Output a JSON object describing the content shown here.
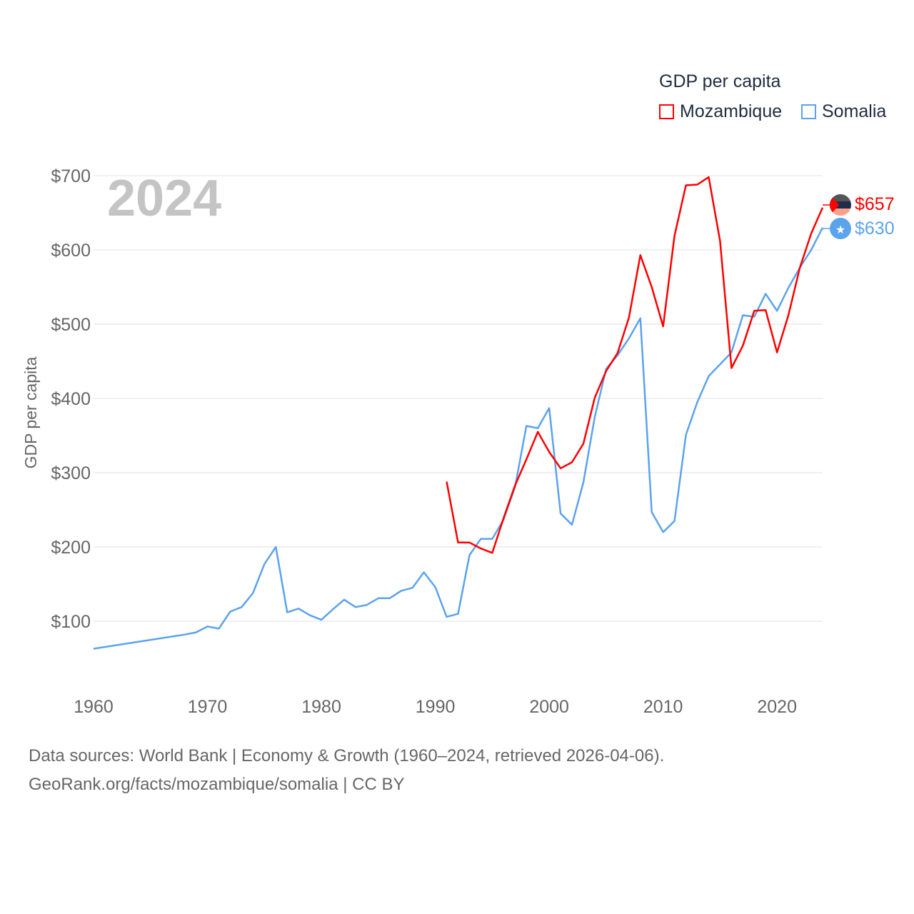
{
  "legend": {
    "title": "GDP per capita",
    "items": [
      {
        "label": "Mozambique",
        "color": "#ff0000"
      },
      {
        "label": "Somalia",
        "color": "#5ba3ec"
      }
    ]
  },
  "year_display": "2024",
  "end_labels": {
    "mozambique": "$657",
    "somalia": "$630"
  },
  "footer": {
    "line1": "Data sources: World Bank | Economy & Growth (1960–2024, retrieved 2026-04-06).",
    "line2": "GeoRank.org/facts/mozambique/somalia | CC BY"
  },
  "chart_data": {
    "type": "line",
    "title": "GDP per capita",
    "xlabel": "",
    "ylabel": "GDP per capita",
    "xlim": [
      1960,
      2024
    ],
    "ylim": [
      40,
      720
    ],
    "x_ticks": [
      1960,
      1970,
      1980,
      1990,
      2000,
      2010,
      2020
    ],
    "x_tick_labels": [
      "1960",
      "1970",
      "1980",
      "1990",
      "2000",
      "2010",
      "2020"
    ],
    "y_ticks": [
      100,
      200,
      300,
      400,
      500,
      600,
      700
    ],
    "y_tick_labels": [
      "$100",
      "$200",
      "$300",
      "$400",
      "$500",
      "$600",
      "$700"
    ],
    "grid": true,
    "legend_position": "top-right",
    "series": [
      {
        "name": "Mozambique",
        "color": "#ff0000",
        "x": [
          1991,
          1992,
          1993,
          1994,
          1995,
          1996,
          1997,
          1998,
          1999,
          2000,
          2001,
          2002,
          2003,
          2004,
          2005,
          2006,
          2007,
          2008,
          2009,
          2010,
          2011,
          2012,
          2013,
          2014,
          2015,
          2016,
          2017,
          2018,
          2019,
          2020,
          2021,
          2022,
          2023,
          2024
        ],
        "values": [
          288,
          206,
          206,
          198,
          192,
          239,
          283,
          318,
          355,
          328,
          306,
          314,
          339,
          401,
          437,
          461,
          509,
          593,
          550,
          497,
          619,
          687,
          688,
          698,
          612,
          441,
          471,
          518,
          519,
          462,
          512,
          576,
          622,
          657
        ]
      },
      {
        "name": "Somalia",
        "color": "#5ba3ec",
        "x": [
          1960,
          1968,
          1969,
          1970,
          1971,
          1972,
          1973,
          1974,
          1975,
          1976,
          1977,
          1978,
          1979,
          1980,
          1981,
          1982,
          1983,
          1984,
          1985,
          1986,
          1987,
          1988,
          1989,
          1990,
          1991,
          1992,
          1993,
          1994,
          1995,
          1996,
          1997,
          1998,
          1999,
          2000,
          2001,
          2002,
          2003,
          2004,
          2005,
          2006,
          2007,
          2008,
          2009,
          2010,
          2011,
          2012,
          2013,
          2014,
          2015,
          2016,
          2017,
          2018,
          2019,
          2020,
          2021,
          2022,
          2023,
          2024
        ],
        "values": [
          63,
          82,
          85,
          93,
          90,
          113,
          119,
          138,
          177,
          200,
          112,
          117,
          108,
          102,
          116,
          129,
          119,
          122,
          131,
          131,
          141,
          145,
          166,
          146,
          106,
          110,
          189,
          211,
          211,
          237,
          281,
          363,
          360,
          387,
          245,
          230,
          287,
          375,
          440,
          458,
          481,
          508,
          247,
          220,
          235,
          351,
          395,
          430,
          446,
          462,
          512,
          510,
          541,
          518,
          549,
          576,
          600,
          630
        ]
      }
    ]
  }
}
